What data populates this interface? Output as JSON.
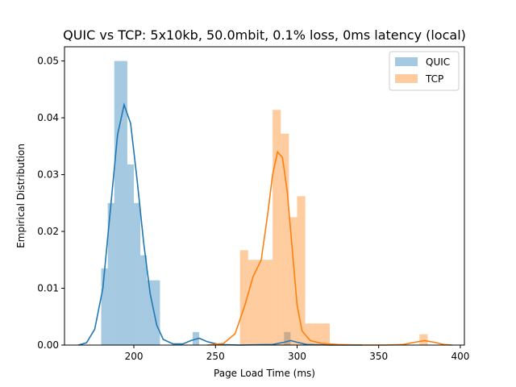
{
  "chart_data": {
    "type": "histogram",
    "title": "QUIC vs TCP: 5x10kb, 50.0mbit, 0.1% loss, 0ms latency (local)",
    "xlabel": "Page Load Time (ms)",
    "ylabel": "Empirical Distribution",
    "xlim": [
      157.5,
      402.5
    ],
    "ylim": [
      0,
      0.0525
    ],
    "x_ticks": [
      200,
      250,
      300,
      350,
      400
    ],
    "y_ticks": [
      0.0,
      0.01,
      0.02,
      0.03,
      0.04,
      0.05
    ],
    "x_tick_labels": [
      "200",
      "250",
      "300",
      "350",
      "400"
    ],
    "y_tick_labels": [
      "0.00",
      "0.01",
      "0.02",
      "0.03",
      "0.04",
      "0.05"
    ],
    "legend_position": "top-right",
    "series": [
      {
        "name": "QUIC",
        "color": "#1f77b4",
        "hist_bins": [
          {
            "x0": 180,
            "x1": 184,
            "value": 0.0135
          },
          {
            "x0": 184,
            "x1": 188,
            "value": 0.025
          },
          {
            "x0": 188,
            "x1": 196,
            "value": 0.05
          },
          {
            "x0": 196,
            "x1": 200,
            "value": 0.0318
          },
          {
            "x0": 200,
            "x1": 204,
            "value": 0.025
          },
          {
            "x0": 204,
            "x1": 208,
            "value": 0.0158
          },
          {
            "x0": 208,
            "x1": 212,
            "value": 0.0114
          },
          {
            "x0": 212,
            "x1": 216,
            "value": 0.0114
          },
          {
            "x0": 236,
            "x1": 240,
            "value": 0.0023
          },
          {
            "x0": 292,
            "x1": 296,
            "value": 0.0023
          }
        ],
        "kde_points": [
          [
            166,
            0.0
          ],
          [
            171,
            0.0004
          ],
          [
            176,
            0.0028
          ],
          [
            181,
            0.01
          ],
          [
            186,
            0.025
          ],
          [
            190,
            0.037
          ],
          [
            194,
            0.0423
          ],
          [
            198,
            0.039
          ],
          [
            202,
            0.029
          ],
          [
            206,
            0.018
          ],
          [
            210,
            0.009
          ],
          [
            214,
            0.0035
          ],
          [
            218,
            0.001
          ],
          [
            224,
            0.0002
          ],
          [
            230,
            0.0002
          ],
          [
            235,
            0.0008
          ],
          [
            240,
            0.0012
          ],
          [
            245,
            0.0006
          ],
          [
            252,
            0.0001
          ],
          [
            265,
            0.0
          ],
          [
            285,
            0.0001
          ],
          [
            292,
            0.0005
          ],
          [
            296,
            0.0008
          ],
          [
            300,
            0.0005
          ],
          [
            306,
            0.0001
          ],
          [
            320,
            0.0
          ],
          [
            340,
            0.0
          ]
        ]
      },
      {
        "name": "TCP",
        "color": "#ff7f0e",
        "hist_bins": [
          {
            "x0": 265,
            "x1": 270,
            "value": 0.0167
          },
          {
            "x0": 270,
            "x1": 275,
            "value": 0.015
          },
          {
            "x0": 275,
            "x1": 280,
            "value": 0.015
          },
          {
            "x0": 280,
            "x1": 285,
            "value": 0.015
          },
          {
            "x0": 285,
            "x1": 290,
            "value": 0.0414
          },
          {
            "x0": 290,
            "x1": 295,
            "value": 0.0372
          },
          {
            "x0": 295,
            "x1": 300,
            "value": 0.0225
          },
          {
            "x0": 300,
            "x1": 305,
            "value": 0.0262
          },
          {
            "x0": 305,
            "x1": 310,
            "value": 0.0038
          },
          {
            "x0": 310,
            "x1": 315,
            "value": 0.0038
          },
          {
            "x0": 315,
            "x1": 320,
            "value": 0.0038
          },
          {
            "x0": 375,
            "x1": 380,
            "value": 0.0019
          }
        ],
        "kde_points": [
          [
            245,
            0.0
          ],
          [
            255,
            0.0003
          ],
          [
            262,
            0.002
          ],
          [
            268,
            0.007
          ],
          [
            273,
            0.012
          ],
          [
            278,
            0.015
          ],
          [
            282,
            0.023
          ],
          [
            285,
            0.03
          ],
          [
            288,
            0.034
          ],
          [
            291,
            0.033
          ],
          [
            294,
            0.027
          ],
          [
            297,
            0.017
          ],
          [
            300,
            0.007
          ],
          [
            303,
            0.0025
          ],
          [
            308,
            0.0008
          ],
          [
            315,
            0.0003
          ],
          [
            325,
            0.0001
          ],
          [
            340,
            0.0
          ],
          [
            355,
            0.0
          ],
          [
            365,
            0.0001
          ],
          [
            372,
            0.0005
          ],
          [
            378,
            0.0008
          ],
          [
            384,
            0.0005
          ],
          [
            390,
            0.0001
          ],
          [
            395,
            0.0
          ]
        ]
      }
    ]
  }
}
